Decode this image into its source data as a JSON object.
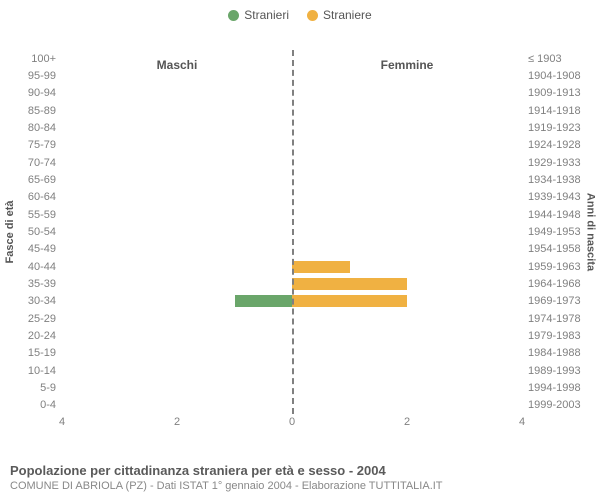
{
  "legend": {
    "male": {
      "label": "Stranieri",
      "color": "#6aa66a"
    },
    "female": {
      "label": "Straniere",
      "color": "#f0b142"
    }
  },
  "chart": {
    "type": "bar",
    "subtitle_left": "Maschi",
    "subtitle_right": "Femmine",
    "y_left_axis_label": "Fasce di età",
    "y_right_axis_label": "Anni di nascita",
    "x_max": 4,
    "x_ticks": [
      4,
      2,
      0,
      2,
      4
    ],
    "bar_color_male": "#6aa66a",
    "bar_color_female": "#f0b142",
    "zero_line_color": "#808080",
    "rows": [
      {
        "age": "100+",
        "birth": "≤ 1903",
        "m": 0,
        "f": 0
      },
      {
        "age": "95-99",
        "birth": "1904-1908",
        "m": 0,
        "f": 0
      },
      {
        "age": "90-94",
        "birth": "1909-1913",
        "m": 0,
        "f": 0
      },
      {
        "age": "85-89",
        "birth": "1914-1918",
        "m": 0,
        "f": 0
      },
      {
        "age": "80-84",
        "birth": "1919-1923",
        "m": 0,
        "f": 0
      },
      {
        "age": "75-79",
        "birth": "1924-1928",
        "m": 0,
        "f": 0
      },
      {
        "age": "70-74",
        "birth": "1929-1933",
        "m": 0,
        "f": 0
      },
      {
        "age": "65-69",
        "birth": "1934-1938",
        "m": 0,
        "f": 0
      },
      {
        "age": "60-64",
        "birth": "1939-1943",
        "m": 0,
        "f": 0
      },
      {
        "age": "55-59",
        "birth": "1944-1948",
        "m": 0,
        "f": 0
      },
      {
        "age": "50-54",
        "birth": "1949-1953",
        "m": 0,
        "f": 0
      },
      {
        "age": "45-49",
        "birth": "1954-1958",
        "m": 0,
        "f": 0
      },
      {
        "age": "40-44",
        "birth": "1959-1963",
        "m": 0,
        "f": 1
      },
      {
        "age": "35-39",
        "birth": "1964-1968",
        "m": 0,
        "f": 2
      },
      {
        "age": "30-34",
        "birth": "1969-1973",
        "m": 1,
        "f": 2
      },
      {
        "age": "25-29",
        "birth": "1974-1978",
        "m": 0,
        "f": 0
      },
      {
        "age": "20-24",
        "birth": "1979-1983",
        "m": 0,
        "f": 0
      },
      {
        "age": "15-19",
        "birth": "1984-1988",
        "m": 0,
        "f": 0
      },
      {
        "age": "10-14",
        "birth": "1989-1993",
        "m": 0,
        "f": 0
      },
      {
        "age": "5-9",
        "birth": "1994-1998",
        "m": 0,
        "f": 0
      },
      {
        "age": "0-4",
        "birth": "1999-2003",
        "m": 0,
        "f": 0
      }
    ]
  },
  "titles": {
    "main": "Popolazione per cittadinanza straniera per età e sesso - 2004",
    "sub": "COMUNE DI ABRIOLA (PZ) - Dati ISTAT 1° gennaio 2004 - Elaborazione TUTTITALIA.IT"
  }
}
